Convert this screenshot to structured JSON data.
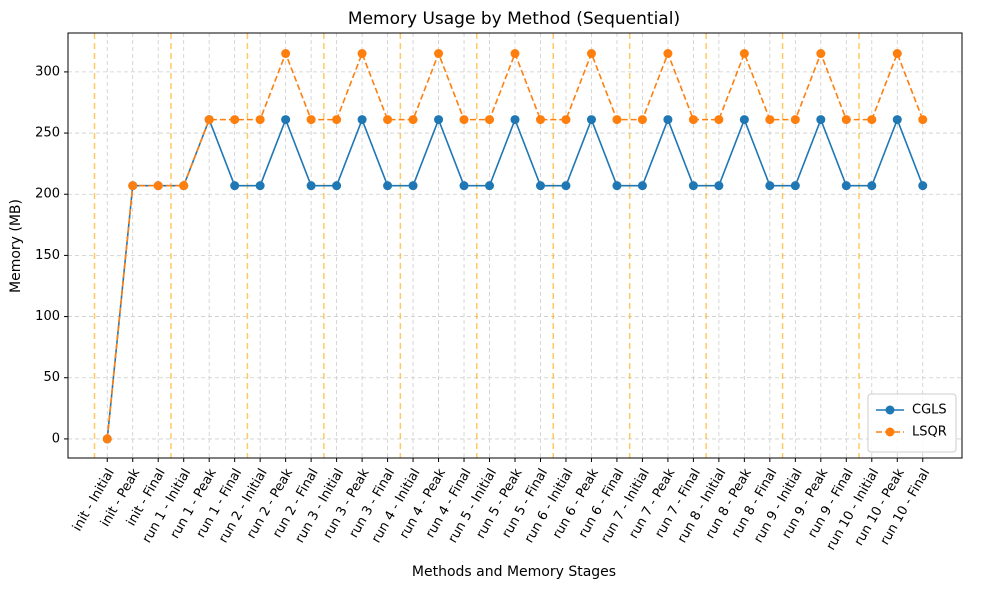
{
  "chart_data": {
    "type": "line",
    "title": "Memory Usage by Method (Sequential)",
    "x_label": "Methods and Memory Stages",
    "y_label": "Memory (MB)",
    "categories": [
      "init - Initial",
      "init - Peak",
      "init - Final",
      "run 1 - Initial",
      "run 1 - Peak",
      "run 1 - Final",
      "run 2 - Initial",
      "run 2 - Peak",
      "run 2 - Final",
      "run 3 - Initial",
      "run 3 - Peak",
      "run 3 - Final",
      "run 4 - Initial",
      "run 4 - Peak",
      "run 4 - Final",
      "run 5 - Initial",
      "run 5 - Peak",
      "run 5 - Final",
      "run 6 - Initial",
      "run 6 - Peak",
      "run 6 - Final",
      "run 7 - Initial",
      "run 7 - Peak",
      "run 7 - Final",
      "run 8 - Initial",
      "run 8 - Peak",
      "run 8 - Final",
      "run 9 - Initial",
      "run 9 - Peak",
      "run 9 - Final",
      "run 10 - Initial",
      "run 10 - Peak",
      "run 10 - Final"
    ],
    "series": [
      {
        "name": "CGLS",
        "color": "#1f77b4",
        "dashed": false,
        "values": [
          0,
          207,
          207,
          207,
          261,
          207,
          207,
          261,
          207,
          207,
          261,
          207,
          207,
          261,
          207,
          207,
          261,
          207,
          207,
          261,
          207,
          207,
          261,
          207,
          207,
          261,
          207,
          207,
          261,
          207,
          207,
          261,
          207
        ]
      },
      {
        "name": "LSQR",
        "color": "#ff7f0e",
        "dashed": true,
        "values": [
          0,
          207,
          207,
          207,
          261,
          261,
          261,
          315,
          261,
          261,
          315,
          261,
          261,
          315,
          261,
          261,
          315,
          261,
          261,
          315,
          261,
          261,
          315,
          261,
          261,
          315,
          261,
          261,
          315,
          261,
          261,
          315,
          261
        ]
      }
    ],
    "separator_color": "#ffa500",
    "ylim": [
      -15.6,
      331.8
    ],
    "yticks": [
      0,
      50,
      100,
      150,
      200,
      250,
      300
    ],
    "grid": true,
    "legend": "lower right"
  }
}
